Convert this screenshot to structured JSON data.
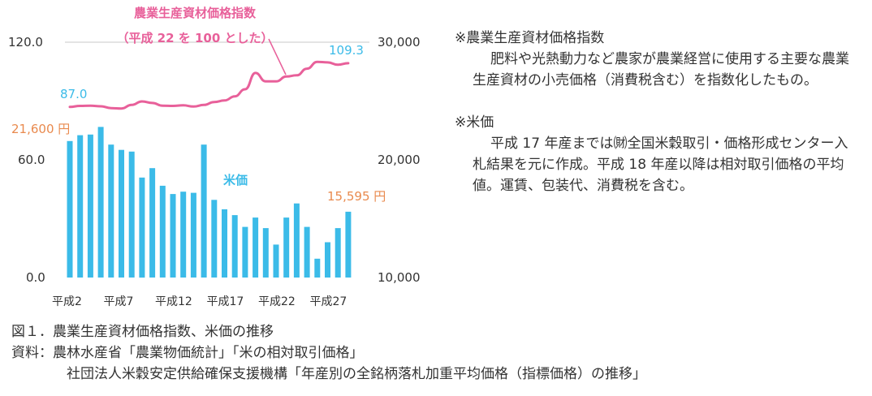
{
  "chart_data": {
    "type": "bar+line",
    "title": "農業生産資材価格指数",
    "subtitle": "（平成 22 を 100 とした）",
    "left_axis": {
      "ticks": [
        "120.0",
        "60.0",
        "0.0"
      ],
      "range": [
        0,
        120
      ]
    },
    "right_axis": {
      "ticks": [
        "30,000",
        "20,000",
        "10,000"
      ],
      "range": [
        10000,
        30000
      ]
    },
    "x_tick_labels": [
      "平成2",
      "平成7",
      "平成12",
      "平成17",
      "平成22",
      "平成27"
    ],
    "years": [
      2,
      3,
      4,
      5,
      6,
      7,
      8,
      9,
      10,
      11,
      12,
      13,
      14,
      15,
      16,
      17,
      18,
      19,
      20,
      21,
      22,
      23,
      24,
      25,
      26,
      27,
      28,
      29
    ],
    "rice_price": {
      "name": "米価",
      "unit": "円",
      "values": [
        21600,
        22100,
        22150,
        22800,
        21300,
        20850,
        20700,
        18500,
        19300,
        17800,
        17100,
        17300,
        17200,
        21300,
        16600,
        15800,
        15300,
        14300,
        15100,
        14200,
        12800,
        15100,
        16300,
        14300,
        11600,
        13000,
        14200,
        15595
      ]
    },
    "price_index": {
      "name": "農業生産資材価格指数",
      "values": [
        87.0,
        87.5,
        87.6,
        87.3,
        86.4,
        86.2,
        88.0,
        89.8,
        89.0,
        87.6,
        87.5,
        87.8,
        87.2,
        88.0,
        89.5,
        90.3,
        92.4,
        96.0,
        104.3,
        100.0,
        100.0,
        102.5,
        103.1,
        106.5,
        110.0,
        109.7,
        108.5,
        109.3
      ]
    },
    "annotations": {
      "index_start": "87.0",
      "index_end": "109.3",
      "rice_start": "21,600 円",
      "rice_end": "15,595 円",
      "rice_label": "米価"
    },
    "colors": {
      "bar": "#3bbbe8",
      "line": "#e8609a",
      "rice_value": "#e98a4e",
      "index_value": "#3bbbe8",
      "grid": "#c8c8c8"
    }
  },
  "notes": {
    "index_title": "※農業生産資材価格指数",
    "index_body": "肥料や光熱動力など農家が農業経営に使用する主要な農業生産資材の小売価格（消費税含む）を指数化したもの。",
    "rice_title": "※米価",
    "rice_body": "平成 17 年産までは㈶全国米穀取引・価格形成センター入札結果を元に作成。平成 18 年産以降は相対取引価格の平均値。運賃、包装代、消費税を含む。"
  },
  "caption": {
    "figure": "図１．農業生産資材価格指数、米価の推移",
    "source_1": "資料：農林水産省「農業物価統計」「米の相対取引価格」",
    "source_2": "社団法人米穀安定供給確保支援機構「年産別の全銘柄落札加重平均価格（指標価格）の推移」"
  }
}
